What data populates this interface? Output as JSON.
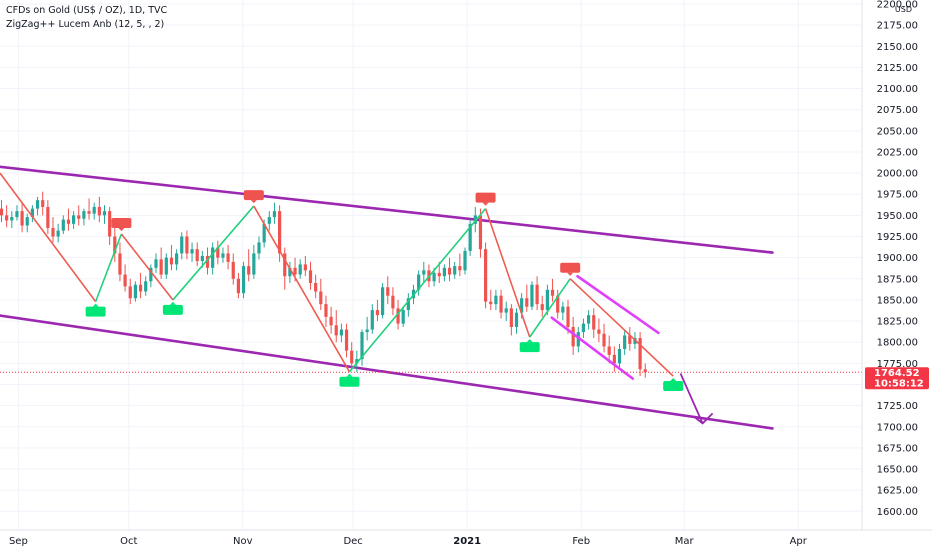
{
  "header": {
    "symbol_line": "CFDs on Gold (US$ / OZ), 1D, TVC",
    "indicator_line": "ZigZag++ Lucem Anb (12, 5, , 2)"
  },
  "price_axis": {
    "currency": "USD",
    "ticks": [
      "2200.00",
      "2175.00",
      "2150.00",
      "2125.00",
      "2100.00",
      "2075.00",
      "2050.00",
      "2025.00",
      "2000.00",
      "1975.00",
      "1950.00",
      "1925.00",
      "1900.00",
      "1875.00",
      "1850.00",
      "1825.00",
      "1800.00",
      "1775.00",
      "1750.00",
      "1725.00",
      "1700.00",
      "1675.00",
      "1650.00",
      "1625.00",
      "1600.00"
    ],
    "current_price": "1764.52",
    "countdown": "10:58:12"
  },
  "time_axis": {
    "ticks": [
      "Sep",
      "Oct",
      "Nov",
      "Dec",
      "2021",
      "Feb",
      "Mar",
      "Apr"
    ]
  },
  "colors": {
    "up": "#26a69a",
    "down": "#ef5350",
    "zigzag_down": "#f05c52",
    "zigzag_up": "#21d17c",
    "channel": "#9c27b0",
    "wedge": "#e040fb",
    "label_high": "#ef5350",
    "label_low": "#00e676",
    "price_tag": "#f23645",
    "grid": "#f0f3fa"
  },
  "chart_data": {
    "type": "candlestick",
    "symbol": "CFDs on Gold (US$ / OZ)",
    "interval": "1D",
    "source": "TVC",
    "ylim": [
      1585,
      2205
    ],
    "y_scale": "linear",
    "grid": true,
    "last_price": 1764.52,
    "zigzag_pivots": [
      {
        "date": "2020-09-22",
        "price": 1848,
        "kind": "low"
      },
      {
        "date": "2020-09-29",
        "price": 1928,
        "kind": "high"
      },
      {
        "date": "2020-10-13",
        "price": 1850,
        "kind": "low"
      },
      {
        "date": "2020-11-04",
        "price": 1961,
        "kind": "high"
      },
      {
        "date": "2020-11-30",
        "price": 1765,
        "kind": "low"
      },
      {
        "date": "2021-01-06",
        "price": 1958,
        "kind": "high"
      },
      {
        "date": "2021-01-18",
        "price": 1806,
        "kind": "low"
      },
      {
        "date": "2021-01-29",
        "price": 1875,
        "kind": "high"
      },
      {
        "date": "2021-02-26",
        "price": 1760,
        "kind": "low"
      }
    ],
    "drawings": [
      {
        "type": "trendline",
        "role": "channel-upper",
        "from": [
          "2020-08-01",
          2020
        ],
        "to": [
          "2021-03-25",
          1906
        ]
      },
      {
        "type": "trendline",
        "role": "channel-lower",
        "from": [
          "2020-08-01",
          1848
        ],
        "to": [
          "2021-03-25",
          1698
        ]
      },
      {
        "type": "trendline",
        "role": "wedge-upper",
        "from": [
          "2021-01-31",
          1878
        ],
        "to": [
          "2021-02-22",
          1811
        ]
      },
      {
        "type": "trendline",
        "role": "wedge-lower",
        "from": [
          "2021-01-24",
          1829
        ],
        "to": [
          "2021-02-15",
          1757
        ]
      },
      {
        "type": "arrow",
        "role": "projection",
        "from": [
          "2021-02-28",
          1763
        ],
        "to": [
          "2021-03-06",
          1704
        ]
      }
    ],
    "candles": [
      {
        "x": 0,
        "o": 1958,
        "h": 1968,
        "c": 1950,
        "l": 1942
      },
      {
        "x": 1,
        "o": 1950,
        "h": 1962,
        "c": 1944,
        "l": 1936
      },
      {
        "x": 2,
        "o": 1944,
        "h": 1955,
        "c": 1948,
        "l": 1935
      },
      {
        "x": 3,
        "o": 1948,
        "h": 1962,
        "c": 1955,
        "l": 1944
      },
      {
        "x": 4,
        "o": 1955,
        "h": 1965,
        "c": 1938,
        "l": 1930
      },
      {
        "x": 5,
        "o": 1938,
        "h": 1952,
        "c": 1948,
        "l": 1930
      },
      {
        "x": 6,
        "o": 1948,
        "h": 1962,
        "c": 1958,
        "l": 1942
      },
      {
        "x": 7,
        "o": 1958,
        "h": 1972,
        "c": 1968,
        "l": 1950
      },
      {
        "x": 8,
        "o": 1968,
        "h": 1978,
        "c": 1960,
        "l": 1950
      },
      {
        "x": 9,
        "o": 1960,
        "h": 1968,
        "c": 1935,
        "l": 1928
      },
      {
        "x": 10,
        "o": 1935,
        "h": 1948,
        "c": 1925,
        "l": 1918
      },
      {
        "x": 11,
        "o": 1925,
        "h": 1940,
        "c": 1932,
        "l": 1918
      },
      {
        "x": 12,
        "o": 1932,
        "h": 1950,
        "c": 1945,
        "l": 1928
      },
      {
        "x": 13,
        "o": 1945,
        "h": 1958,
        "c": 1940,
        "l": 1932
      },
      {
        "x": 14,
        "o": 1940,
        "h": 1955,
        "c": 1950,
        "l": 1934
      },
      {
        "x": 15,
        "o": 1950,
        "h": 1962,
        "c": 1946,
        "l": 1938
      },
      {
        "x": 16,
        "o": 1946,
        "h": 1958,
        "c": 1955,
        "l": 1938
      },
      {
        "x": 17,
        "o": 1955,
        "h": 1970,
        "c": 1952,
        "l": 1945
      },
      {
        "x": 18,
        "o": 1952,
        "h": 1965,
        "c": 1960,
        "l": 1945
      },
      {
        "x": 19,
        "o": 1960,
        "h": 1972,
        "c": 1950,
        "l": 1942
      },
      {
        "x": 20,
        "o": 1950,
        "h": 1962,
        "c": 1955,
        "l": 1940
      },
      {
        "x": 21,
        "o": 1955,
        "h": 1960,
        "c": 1925,
        "l": 1915
      },
      {
        "x": 22,
        "o": 1925,
        "h": 1935,
        "c": 1905,
        "l": 1895
      },
      {
        "x": 23,
        "o": 1905,
        "h": 1918,
        "c": 1880,
        "l": 1872
      },
      {
        "x": 24,
        "o": 1880,
        "h": 1892,
        "c": 1866,
        "l": 1860
      },
      {
        "x": 25,
        "o": 1866,
        "h": 1875,
        "c": 1852,
        "l": 1845
      },
      {
        "x": 26,
        "o": 1852,
        "h": 1872,
        "c": 1868,
        "l": 1848
      },
      {
        "x": 27,
        "o": 1868,
        "h": 1882,
        "c": 1860,
        "l": 1852
      },
      {
        "x": 28,
        "o": 1860,
        "h": 1878,
        "c": 1872,
        "l": 1855
      },
      {
        "x": 29,
        "o": 1872,
        "h": 1892,
        "c": 1888,
        "l": 1865
      },
      {
        "x": 30,
        "o": 1888,
        "h": 1905,
        "c": 1898,
        "l": 1882
      },
      {
        "x": 31,
        "o": 1898,
        "h": 1912,
        "c": 1880,
        "l": 1875
      },
      {
        "x": 32,
        "o": 1880,
        "h": 1905,
        "c": 1900,
        "l": 1875
      },
      {
        "x": 33,
        "o": 1900,
        "h": 1915,
        "c": 1892,
        "l": 1885
      },
      {
        "x": 34,
        "o": 1892,
        "h": 1910,
        "c": 1905,
        "l": 1885
      },
      {
        "x": 35,
        "o": 1905,
        "h": 1930,
        "c": 1925,
        "l": 1898
      },
      {
        "x": 36,
        "o": 1925,
        "h": 1932,
        "c": 1905,
        "l": 1898
      },
      {
        "x": 37,
        "o": 1905,
        "h": 1918,
        "c": 1910,
        "l": 1895
      },
      {
        "x": 38,
        "o": 1910,
        "h": 1918,
        "c": 1896,
        "l": 1890
      },
      {
        "x": 39,
        "o": 1896,
        "h": 1908,
        "c": 1902,
        "l": 1888
      },
      {
        "x": 40,
        "o": 1902,
        "h": 1912,
        "c": 1888,
        "l": 1880
      },
      {
        "x": 41,
        "o": 1888,
        "h": 1918,
        "c": 1912,
        "l": 1880
      },
      {
        "x": 42,
        "o": 1912,
        "h": 1920,
        "c": 1900,
        "l": 1892
      },
      {
        "x": 43,
        "o": 1900,
        "h": 1912,
        "c": 1905,
        "l": 1894
      },
      {
        "x": 44,
        "o": 1905,
        "h": 1915,
        "c": 1895,
        "l": 1886
      },
      {
        "x": 45,
        "o": 1895,
        "h": 1905,
        "c": 1875,
        "l": 1868
      },
      {
        "x": 46,
        "o": 1875,
        "h": 1882,
        "c": 1858,
        "l": 1852
      },
      {
        "x": 47,
        "o": 1858,
        "h": 1895,
        "c": 1890,
        "l": 1852
      },
      {
        "x": 48,
        "o": 1890,
        "h": 1910,
        "c": 1880,
        "l": 1872
      },
      {
        "x": 49,
        "o": 1880,
        "h": 1915,
        "c": 1905,
        "l": 1875
      },
      {
        "x": 50,
        "o": 1905,
        "h": 1925,
        "c": 1918,
        "l": 1898
      },
      {
        "x": 51,
        "o": 1918,
        "h": 1945,
        "c": 1940,
        "l": 1912
      },
      {
        "x": 52,
        "o": 1940,
        "h": 1955,
        "c": 1948,
        "l": 1932
      },
      {
        "x": 53,
        "o": 1948,
        "h": 1965,
        "c": 1955,
        "l": 1940
      },
      {
        "x": 54,
        "o": 1955,
        "h": 1962,
        "c": 1905,
        "l": 1895
      },
      {
        "x": 55,
        "o": 1905,
        "h": 1912,
        "c": 1878,
        "l": 1862
      },
      {
        "x": 56,
        "o": 1878,
        "h": 1895,
        "c": 1888,
        "l": 1870
      },
      {
        "x": 57,
        "o": 1888,
        "h": 1900,
        "c": 1880,
        "l": 1872
      },
      {
        "x": 58,
        "o": 1880,
        "h": 1898,
        "c": 1892,
        "l": 1875
      },
      {
        "x": 59,
        "o": 1892,
        "h": 1902,
        "c": 1885,
        "l": 1878
      },
      {
        "x": 60,
        "o": 1885,
        "h": 1895,
        "c": 1870,
        "l": 1862
      },
      {
        "x": 61,
        "o": 1870,
        "h": 1880,
        "c": 1860,
        "l": 1852
      },
      {
        "x": 62,
        "o": 1860,
        "h": 1875,
        "c": 1845,
        "l": 1838
      },
      {
        "x": 63,
        "o": 1845,
        "h": 1855,
        "c": 1830,
        "l": 1818
      },
      {
        "x": 64,
        "o": 1830,
        "h": 1842,
        "c": 1820,
        "l": 1810
      },
      {
        "x": 65,
        "o": 1820,
        "h": 1838,
        "c": 1808,
        "l": 1800
      },
      {
        "x": 66,
        "o": 1808,
        "h": 1822,
        "c": 1815,
        "l": 1800
      },
      {
        "x": 67,
        "o": 1815,
        "h": 1822,
        "c": 1790,
        "l": 1782
      },
      {
        "x": 68,
        "o": 1790,
        "h": 1800,
        "c": 1775,
        "l": 1768
      },
      {
        "x": 69,
        "o": 1775,
        "h": 1790,
        "c": 1780,
        "l": 1765
      },
      {
        "x": 70,
        "o": 1780,
        "h": 1815,
        "c": 1812,
        "l": 1772
      },
      {
        "x": 71,
        "o": 1812,
        "h": 1830,
        "c": 1815,
        "l": 1802
      },
      {
        "x": 72,
        "o": 1815,
        "h": 1845,
        "c": 1838,
        "l": 1810
      },
      {
        "x": 73,
        "o": 1838,
        "h": 1850,
        "c": 1832,
        "l": 1825
      },
      {
        "x": 74,
        "o": 1832,
        "h": 1870,
        "c": 1865,
        "l": 1828
      },
      {
        "x": 75,
        "o": 1865,
        "h": 1878,
        "c": 1855,
        "l": 1845
      },
      {
        "x": 76,
        "o": 1855,
        "h": 1865,
        "c": 1840,
        "l": 1832
      },
      {
        "x": 77,
        "o": 1840,
        "h": 1850,
        "c": 1822,
        "l": 1815
      },
      {
        "x": 78,
        "o": 1822,
        "h": 1842,
        "c": 1838,
        "l": 1818
      },
      {
        "x": 79,
        "o": 1838,
        "h": 1858,
        "c": 1852,
        "l": 1830
      },
      {
        "x": 80,
        "o": 1852,
        "h": 1868,
        "c": 1862,
        "l": 1845
      },
      {
        "x": 81,
        "o": 1862,
        "h": 1885,
        "c": 1880,
        "l": 1855
      },
      {
        "x": 82,
        "o": 1880,
        "h": 1895,
        "c": 1885,
        "l": 1870
      },
      {
        "x": 83,
        "o": 1885,
        "h": 1892,
        "c": 1872,
        "l": 1865
      },
      {
        "x": 84,
        "o": 1872,
        "h": 1888,
        "c": 1882,
        "l": 1866
      },
      {
        "x": 85,
        "o": 1882,
        "h": 1895,
        "c": 1878,
        "l": 1870
      },
      {
        "x": 86,
        "o": 1878,
        "h": 1892,
        "c": 1888,
        "l": 1872
      },
      {
        "x": 87,
        "o": 1888,
        "h": 1900,
        "c": 1880,
        "l": 1872
      },
      {
        "x": 88,
        "o": 1880,
        "h": 1895,
        "c": 1890,
        "l": 1875
      },
      {
        "x": 89,
        "o": 1890,
        "h": 1905,
        "c": 1885,
        "l": 1878
      },
      {
        "x": 90,
        "o": 1885,
        "h": 1912,
        "c": 1908,
        "l": 1880
      },
      {
        "x": 91,
        "o": 1908,
        "h": 1945,
        "c": 1940,
        "l": 1902
      },
      {
        "x": 92,
        "o": 1940,
        "h": 1960,
        "c": 1950,
        "l": 1930
      },
      {
        "x": 93,
        "o": 1950,
        "h": 1958,
        "c": 1910,
        "l": 1900
      },
      {
        "x": 94,
        "o": 1910,
        "h": 1918,
        "c": 1848,
        "l": 1840
      },
      {
        "x": 95,
        "o": 1848,
        "h": 1862,
        "c": 1845,
        "l": 1838
      },
      {
        "x": 96,
        "o": 1845,
        "h": 1862,
        "c": 1855,
        "l": 1838
      },
      {
        "x": 97,
        "o": 1855,
        "h": 1862,
        "c": 1835,
        "l": 1828
      },
      {
        "x": 98,
        "o": 1835,
        "h": 1848,
        "c": 1840,
        "l": 1825
      },
      {
        "x": 99,
        "o": 1840,
        "h": 1845,
        "c": 1818,
        "l": 1808
      },
      {
        "x": 100,
        "o": 1818,
        "h": 1840,
        "c": 1835,
        "l": 1810
      },
      {
        "x": 101,
        "o": 1835,
        "h": 1858,
        "c": 1852,
        "l": 1828
      },
      {
        "x": 102,
        "o": 1852,
        "h": 1868,
        "c": 1842,
        "l": 1836
      },
      {
        "x": 103,
        "o": 1842,
        "h": 1872,
        "c": 1868,
        "l": 1838
      },
      {
        "x": 104,
        "o": 1868,
        "h": 1878,
        "c": 1845,
        "l": 1838
      },
      {
        "x": 105,
        "o": 1845,
        "h": 1855,
        "c": 1838,
        "l": 1830
      },
      {
        "x": 106,
        "o": 1838,
        "h": 1868,
        "c": 1862,
        "l": 1832
      },
      {
        "x": 107,
        "o": 1862,
        "h": 1875,
        "c": 1855,
        "l": 1848
      },
      {
        "x": 108,
        "o": 1855,
        "h": 1862,
        "c": 1835,
        "l": 1828
      },
      {
        "x": 109,
        "o": 1835,
        "h": 1848,
        "c": 1842,
        "l": 1826
      },
      {
        "x": 110,
        "o": 1842,
        "h": 1850,
        "c": 1818,
        "l": 1810
      },
      {
        "x": 111,
        "o": 1818,
        "h": 1830,
        "c": 1795,
        "l": 1785
      },
      {
        "x": 112,
        "o": 1795,
        "h": 1818,
        "c": 1812,
        "l": 1788
      },
      {
        "x": 113,
        "o": 1812,
        "h": 1828,
        "c": 1822,
        "l": 1805
      },
      {
        "x": 114,
        "o": 1822,
        "h": 1838,
        "c": 1832,
        "l": 1815
      },
      {
        "x": 115,
        "o": 1832,
        "h": 1840,
        "c": 1815,
        "l": 1805
      },
      {
        "x": 116,
        "o": 1815,
        "h": 1828,
        "c": 1810,
        "l": 1800
      },
      {
        "x": 117,
        "o": 1810,
        "h": 1822,
        "c": 1795,
        "l": 1788
      },
      {
        "x": 118,
        "o": 1795,
        "h": 1808,
        "c": 1785,
        "l": 1775
      },
      {
        "x": 119,
        "o": 1785,
        "h": 1795,
        "c": 1775,
        "l": 1765
      },
      {
        "x": 120,
        "o": 1775,
        "h": 1798,
        "c": 1792,
        "l": 1768
      },
      {
        "x": 121,
        "o": 1792,
        "h": 1815,
        "c": 1808,
        "l": 1785
      },
      {
        "x": 122,
        "o": 1808,
        "h": 1818,
        "c": 1798,
        "l": 1790
      },
      {
        "x": 123,
        "o": 1798,
        "h": 1812,
        "c": 1805,
        "l": 1792
      },
      {
        "x": 124,
        "o": 1805,
        "h": 1812,
        "c": 1768,
        "l": 1760
      },
      {
        "x": 125,
        "o": 1768,
        "h": 1775,
        "c": 1764.52,
        "l": 1758
      }
    ]
  }
}
